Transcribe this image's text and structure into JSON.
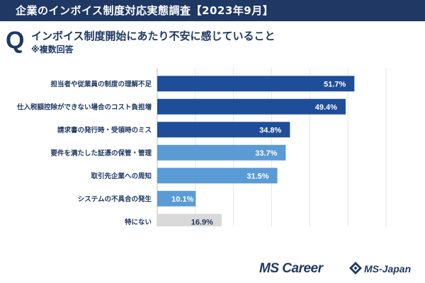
{
  "header": {
    "title": "企業のインボイス制度対応実態調査【2023年9月】"
  },
  "question": {
    "mark": "Q",
    "text": "インボイス制度開始にあたり不安に感じていること",
    "note": "※複数回答"
  },
  "chart_data": {
    "type": "bar",
    "orientation": "horizontal",
    "categories": [
      "担当者や従業員の制度の理解不足",
      "仕入税額控除ができない場合のコスト負担増",
      "請求書の発行時・受領時のミス",
      "要件を満たした証憑の保管・管理",
      "取引先企業への周知",
      "システムの不具合の発生",
      "特にない"
    ],
    "values": [
      51.7,
      49.4,
      34.8,
      33.7,
      31.5,
      10.1,
      16.9
    ],
    "value_labels": [
      "51.7%",
      "49.4%",
      "34.8%",
      "33.7%",
      "31.5%",
      "10.1%",
      "16.9%"
    ],
    "colors": [
      "#1f4e99",
      "#1f4e99",
      "#1f4e99",
      "#5b9bd5",
      "#5b9bd5",
      "#5b9bd5",
      "#d9d9d9"
    ],
    "xlim": [
      0,
      60
    ],
    "grid": true,
    "title": "",
    "xlabel": "",
    "ylabel": ""
  },
  "footer": {
    "logo_ms": "MS Career",
    "logo_msj": "MS-Japan"
  }
}
